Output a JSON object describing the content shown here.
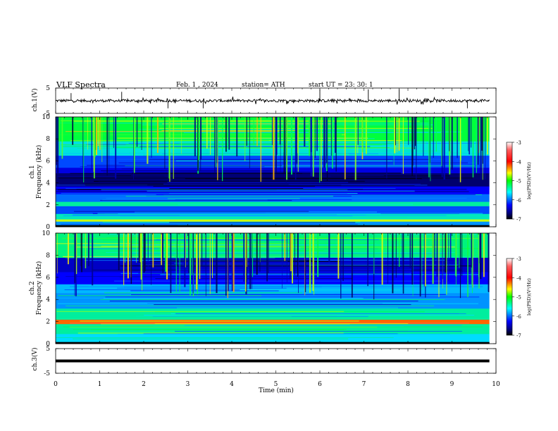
{
  "header": {
    "title": "VLF  Spectra",
    "date": "Feb. 1  , 2024",
    "station": "station= ATH",
    "start_ut": "start  UT  =    23: 30: 1"
  },
  "colorbar": {
    "label": "log(PSD)(V²/Hz)",
    "ticks": [
      "-3",
      "-4",
      "-5",
      "-6",
      "-7"
    ],
    "colors": [
      "#ffffff",
      "#ff0000",
      "#ffff00",
      "#00ff00",
      "#00ffff",
      "#0000ff",
      "#000000"
    ]
  },
  "chart_data": [
    {
      "type": "line",
      "panel": "ch1-waveform",
      "ylabel": "ch.1(V)",
      "ylim": [
        -5,
        5
      ],
      "y_ticks": [
        "5",
        "-5"
      ],
      "xlim": [
        0,
        10
      ],
      "baseline": 0,
      "spikes": [
        {
          "x": 0.35,
          "y": 3.0
        },
        {
          "x": 1.5,
          "y": 3.5
        },
        {
          "x": 2.55,
          "y": -3.0
        },
        {
          "x": 3.35,
          "y": -3.0
        },
        {
          "x": 6.0,
          "y": 4.5
        },
        {
          "x": 7.1,
          "y": 4.5
        },
        {
          "x": 7.8,
          "y": 4.5
        },
        {
          "x": 9.35,
          "y": -3.0
        }
      ]
    },
    {
      "type": "heatmap",
      "panel": "ch1-spectrogram",
      "ylabel_line1": "ch.1",
      "ylabel_line2": "Frequency  (kHz)",
      "ylim": [
        0,
        10
      ],
      "y_ticks": [
        "0",
        "2",
        "4",
        "6",
        "8",
        "10"
      ],
      "xlim": [
        0,
        10
      ],
      "z_range": [
        -7,
        -3
      ],
      "bands": [
        {
          "f0": 0.0,
          "f1": 0.15,
          "v": -7.0
        },
        {
          "f0": 0.15,
          "f1": 0.5,
          "v": -5.8
        },
        {
          "f0": 0.5,
          "f1": 0.7,
          "v": -4.6
        },
        {
          "f0": 0.7,
          "f1": 1.2,
          "v": -5.4
        },
        {
          "f0": 1.2,
          "f1": 1.9,
          "v": -6.0
        },
        {
          "f0": 1.9,
          "f1": 2.3,
          "v": -5.3
        },
        {
          "f0": 2.3,
          "f1": 3.0,
          "v": -5.9
        },
        {
          "f0": 3.0,
          "f1": 3.7,
          "v": -6.2
        },
        {
          "f0": 3.7,
          "f1": 4.9,
          "v": -6.7
        },
        {
          "f0": 4.9,
          "f1": 5.4,
          "v": -6.3
        },
        {
          "f0": 5.4,
          "f1": 6.5,
          "v": -6.0
        },
        {
          "f0": 6.5,
          "f1": 7.8,
          "v": -5.5
        },
        {
          "f0": 7.8,
          "f1": 10.0,
          "v": -5.0
        }
      ]
    },
    {
      "type": "heatmap",
      "panel": "ch2-spectrogram",
      "ylabel_line1": "ch.2",
      "ylabel_line2": "Frequency  (kHz)",
      "ylim": [
        0,
        10
      ],
      "y_ticks": [
        "0",
        "2",
        "4",
        "6",
        "8",
        "10"
      ],
      "xlim": [
        0,
        10
      ],
      "z_range": [
        -7,
        -3
      ],
      "bands": [
        {
          "f0": 0.0,
          "f1": 0.15,
          "v": -7.0
        },
        {
          "f0": 0.15,
          "f1": 0.9,
          "v": -5.6
        },
        {
          "f0": 0.9,
          "f1": 1.8,
          "v": -5.3
        },
        {
          "f0": 1.8,
          "f1": 2.2,
          "v": -4.2
        },
        {
          "f0": 2.2,
          "f1": 3.2,
          "v": -5.3
        },
        {
          "f0": 3.2,
          "f1": 4.6,
          "v": -5.8
        },
        {
          "f0": 4.6,
          "f1": 5.4,
          "v": -5.7
        },
        {
          "f0": 5.4,
          "f1": 6.5,
          "v": -6.2
        },
        {
          "f0": 6.5,
          "f1": 7.8,
          "v": -6.4
        },
        {
          "f0": 7.8,
          "f1": 10.0,
          "v": -5.2
        }
      ]
    },
    {
      "type": "line",
      "panel": "ch3-waveform",
      "ylabel": "ch.3(V)",
      "ylim": [
        -5,
        5
      ],
      "y_ticks": [
        "5",
        "-5"
      ],
      "xlim": [
        0,
        10
      ],
      "baseline": 0
    }
  ],
  "x_axis": {
    "label": "Time  (min)",
    "ticks": [
      "0",
      "1",
      "2",
      "3",
      "4",
      "5",
      "6",
      "7",
      "8",
      "9",
      "10"
    ]
  }
}
